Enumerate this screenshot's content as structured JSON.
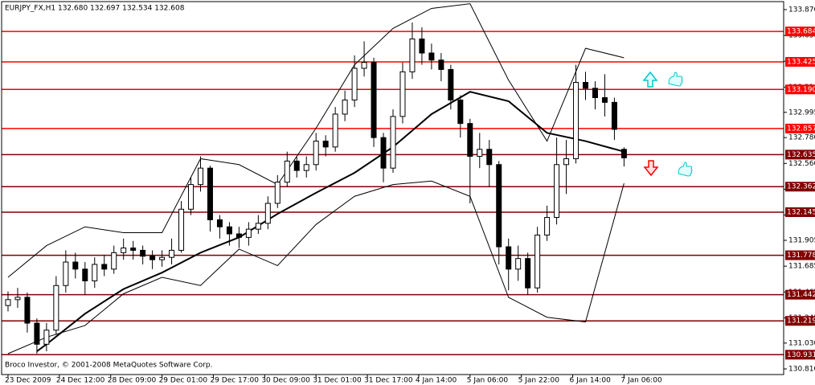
{
  "chart_data": {
    "type": "candlestick",
    "title": "EURJPY_FX,H1  132.680 132.697 132.534 132.608",
    "copyright": "Broco Investor, © 2001-2008 MetaQuotes Software Corp.",
    "color": "#000000",
    "x": [
      0,
      3,
      6,
      9,
      12,
      15,
      18,
      21,
      24,
      27,
      30,
      33,
      36,
      39,
      42,
      45,
      48,
      51,
      54,
      57,
      60,
      63,
      66,
      69,
      72,
      75,
      78,
      81,
      84,
      87,
      90,
      93,
      96,
      99,
      102,
      105,
      108,
      111,
      114,
      117,
      120,
      123,
      126,
      129,
      132,
      135,
      138,
      141,
      144,
      147,
      150,
      153,
      156,
      159,
      162,
      165,
      168,
      171,
      174,
      177,
      180,
      183,
      186,
      189,
      192
    ],
    "candles": [
      [
        131.35,
        131.47,
        131.3,
        131.4
      ],
      [
        131.4,
        131.5,
        131.33,
        131.42
      ],
      [
        131.42,
        131.46,
        131.12,
        131.2
      ],
      [
        131.2,
        131.24,
        130.94,
        131.02
      ],
      [
        131.02,
        131.2,
        130.96,
        131.14
      ],
      [
        131.14,
        131.6,
        131.1,
        131.52
      ],
      [
        131.52,
        131.82,
        131.46,
        131.72
      ],
      [
        131.72,
        131.8,
        131.58,
        131.66
      ],
      [
        131.66,
        131.72,
        131.44,
        131.56
      ],
      [
        131.56,
        131.76,
        131.5,
        131.7
      ],
      [
        131.7,
        131.78,
        131.6,
        131.66
      ],
      [
        131.66,
        131.86,
        131.62,
        131.8
      ],
      [
        131.8,
        131.92,
        131.74,
        131.84
      ],
      [
        131.84,
        131.9,
        131.74,
        131.82
      ],
      [
        131.82,
        131.86,
        131.7,
        131.77
      ],
      [
        131.77,
        131.82,
        131.66,
        131.74
      ],
      [
        131.74,
        131.82,
        131.68,
        131.76
      ],
      [
        131.76,
        131.92,
        131.7,
        131.82
      ],
      [
        131.82,
        132.24,
        131.8,
        132.17
      ],
      [
        132.17,
        132.44,
        132.12,
        132.38
      ],
      [
        132.38,
        132.62,
        132.32,
        132.52
      ],
      [
        132.52,
        132.54,
        131.98,
        132.08
      ],
      [
        132.08,
        132.12,
        131.92,
        132.02
      ],
      [
        132.02,
        132.06,
        131.86,
        131.96
      ],
      [
        131.96,
        132.02,
        131.84,
        131.93
      ],
      [
        131.93,
        132.06,
        131.86,
        132.0
      ],
      [
        132.0,
        132.12,
        131.96,
        132.05
      ],
      [
        132.05,
        132.28,
        132.0,
        132.22
      ],
      [
        132.22,
        132.46,
        132.18,
        132.4
      ],
      [
        132.4,
        132.66,
        132.36,
        132.58
      ],
      [
        132.58,
        132.62,
        132.44,
        132.5
      ],
      [
        132.5,
        132.62,
        132.44,
        132.55
      ],
      [
        132.55,
        132.82,
        132.5,
        132.75
      ],
      [
        132.75,
        132.8,
        132.62,
        132.7
      ],
      [
        132.7,
        133.04,
        132.66,
        132.98
      ],
      [
        132.98,
        133.18,
        132.92,
        133.1
      ],
      [
        133.1,
        133.48,
        133.04,
        133.37
      ],
      [
        133.37,
        133.6,
        133.3,
        133.42
      ],
      [
        133.42,
        133.46,
        132.7,
        132.78
      ],
      [
        132.78,
        132.82,
        132.4,
        132.52
      ],
      [
        132.52,
        133.02,
        132.48,
        132.96
      ],
      [
        132.96,
        133.42,
        132.9,
        133.34
      ],
      [
        133.34,
        133.76,
        133.28,
        133.62
      ],
      [
        133.62,
        133.72,
        133.4,
        133.5
      ],
      [
        133.5,
        133.58,
        133.36,
        133.44
      ],
      [
        133.44,
        133.5,
        133.26,
        133.36
      ],
      [
        133.36,
        133.4,
        133.02,
        133.1
      ],
      [
        133.1,
        133.14,
        132.78,
        132.9
      ],
      [
        132.9,
        132.94,
        132.22,
        132.62
      ],
      [
        132.62,
        132.82,
        132.52,
        132.68
      ],
      [
        132.68,
        132.76,
        132.36,
        132.55
      ],
      [
        132.55,
        132.58,
        131.7,
        131.85
      ],
      [
        131.85,
        131.92,
        131.48,
        131.66
      ],
      [
        131.66,
        131.86,
        131.56,
        131.75
      ],
      [
        131.75,
        131.8,
        131.44,
        131.5
      ],
      [
        131.5,
        132.02,
        131.46,
        131.95
      ],
      [
        131.95,
        132.2,
        131.9,
        132.1
      ],
      [
        132.1,
        132.78,
        132.04,
        132.55
      ],
      [
        132.55,
        132.76,
        132.3,
        132.6
      ],
      [
        132.6,
        133.4,
        132.56,
        133.25
      ],
      [
        133.25,
        133.34,
        133.1,
        133.2
      ],
      [
        133.2,
        133.26,
        133.02,
        133.12
      ],
      [
        133.12,
        133.32,
        132.96,
        133.08
      ],
      [
        133.08,
        133.12,
        132.76,
        132.85
      ],
      [
        132.68,
        132.697,
        132.534,
        132.608
      ]
    ],
    "lines": [
      {
        "color": "#000000",
        "width": 2,
        "x": [
          9,
          12,
          24,
          36,
          48,
          60,
          72,
          84,
          96,
          108,
          120,
          132,
          144,
          156,
          168,
          180,
          192
        ],
        "values": [
          130.96,
          131.02,
          131.28,
          131.49,
          131.63,
          131.8,
          131.93,
          132.13,
          132.31,
          132.48,
          132.7,
          132.98,
          133.17,
          133.09,
          132.82,
          132.75,
          132.66
        ]
      },
      {
        "color": "#000000",
        "width": 1,
        "x": [
          0,
          12,
          24,
          36,
          48,
          60,
          72,
          84,
          96,
          108,
          120,
          132,
          144,
          156,
          168,
          180,
          192
        ],
        "values": [
          131.59,
          131.86,
          132.02,
          131.97,
          131.97,
          132.6,
          132.55,
          132.38,
          132.86,
          133.4,
          133.71,
          133.88,
          133.92,
          133.27,
          132.75,
          133.54,
          133.46
        ]
      },
      {
        "color": "#000000",
        "width": 1,
        "x": [
          0,
          12,
          24,
          36,
          48,
          60,
          72,
          84,
          96,
          108,
          120,
          132,
          144,
          156,
          168,
          180,
          192
        ],
        "values": [
          130.94,
          131.08,
          131.18,
          131.45,
          131.59,
          131.52,
          131.83,
          131.69,
          132.04,
          132.28,
          132.38,
          132.41,
          132.28,
          131.42,
          131.25,
          131.21,
          132.39
        ]
      }
    ],
    "xlim": [
      -2,
      241.75
    ],
    "xticks": [
      {
        "value": 0,
        "label": "23 Dec 2009"
      },
      {
        "value": 16,
        "label": "24 Dec 12:00"
      },
      {
        "value": 32,
        "label": "28 Dec 09:00"
      },
      {
        "value": 48,
        "label": "29 Dec 01:00"
      },
      {
        "value": 64,
        "label": "29 Dec 17:00"
      },
      {
        "value": 80,
        "label": "30 Dec 09:00"
      },
      {
        "value": 96,
        "label": "31 Dec 01:00"
      },
      {
        "value": 112,
        "label": "31 Dec 17:00"
      },
      {
        "value": 128,
        "label": "4 Jan 14:00"
      },
      {
        "value": 144,
        "label": "5 Jan 06:00"
      },
      {
        "value": 160,
        "label": "5 Jan 22:00"
      },
      {
        "value": 176,
        "label": "6 Jan 14:00"
      },
      {
        "value": 192,
        "label": "7 Jan 06:00"
      }
    ],
    "ylim": [
      130.762,
      133.938
    ],
    "yticks": [
      {
        "value": 133.87,
        "label": "133.870"
      },
      {
        "value": 133.65,
        "label": "133.650"
      },
      {
        "value": 133.43,
        "label": "133.430"
      },
      {
        "value": 133.21,
        "label": "133.210"
      },
      132.995,
      {
        "value": 132.78,
        "label": "132.780"
      },
      {
        "value": 132.56,
        "label": "132.560"
      },
      {
        "value": 132.34,
        "label": "132.340"
      },
      {
        "value": 132.12,
        "label": "132.120"
      },
      131.905,
      131.685,
      131.465,
      131.245,
      {
        "value": 131.03,
        "label": "131.030"
      },
      {
        "value": 130.81,
        "label": "130.810"
      }
    ],
    "hlines": [
      133.684,
      133.425,
      {
        "value": 133.19,
        "label": "133.190"
      },
      132.857,
      132.635,
      132.362,
      132.145,
      131.778,
      131.442,
      131.219,
      130.931
    ],
    "hline_colors": [
      "#ff0000",
      "#ff0000",
      "#ff0000",
      "#ff0000",
      "#800000",
      "#800000",
      "#800000",
      "#800000",
      "#800000",
      "#800000",
      "#800000"
    ]
  }
}
